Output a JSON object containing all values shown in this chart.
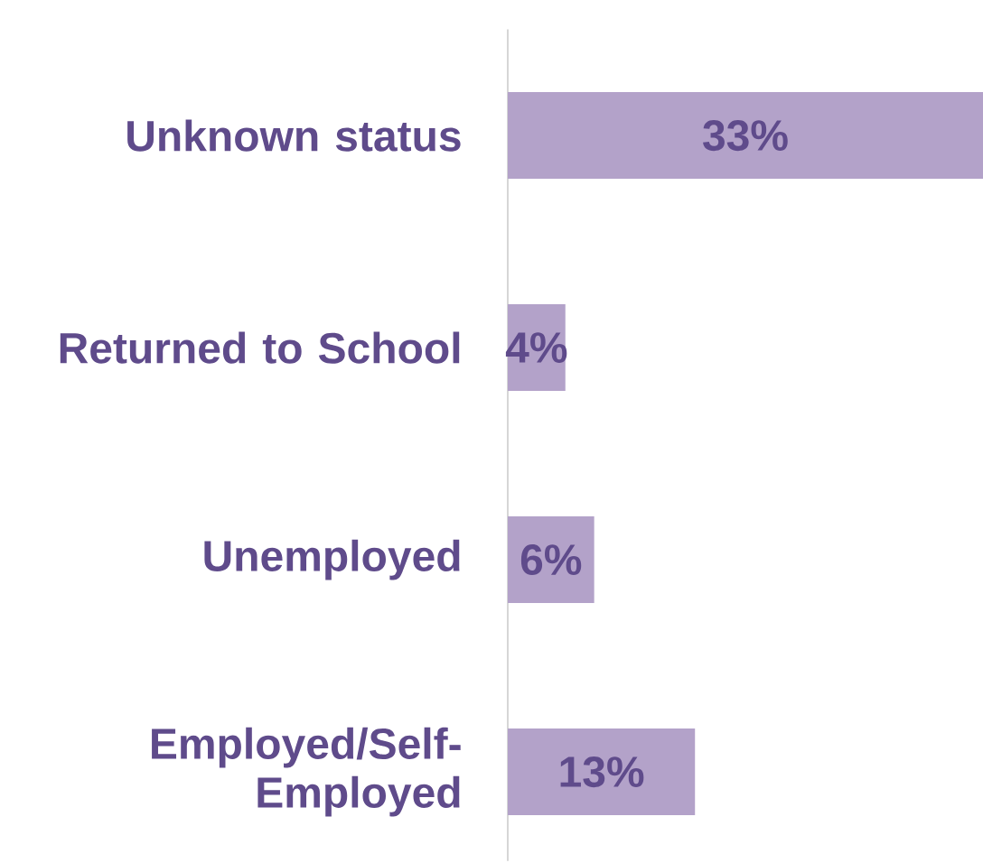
{
  "chart_data": {
    "type": "bar",
    "orientation": "horizontal",
    "categories": [
      "Unknown status",
      "Returned to School",
      "Unemployed",
      "Employed/Self-Employed"
    ],
    "values": [
      33,
      4,
      6,
      13
    ],
    "value_labels": [
      "33%",
      "4%",
      "6%",
      "13%"
    ],
    "color": "#b3a2c9",
    "xlim": [
      0,
      33
    ],
    "tick_labels": "y"
  }
}
